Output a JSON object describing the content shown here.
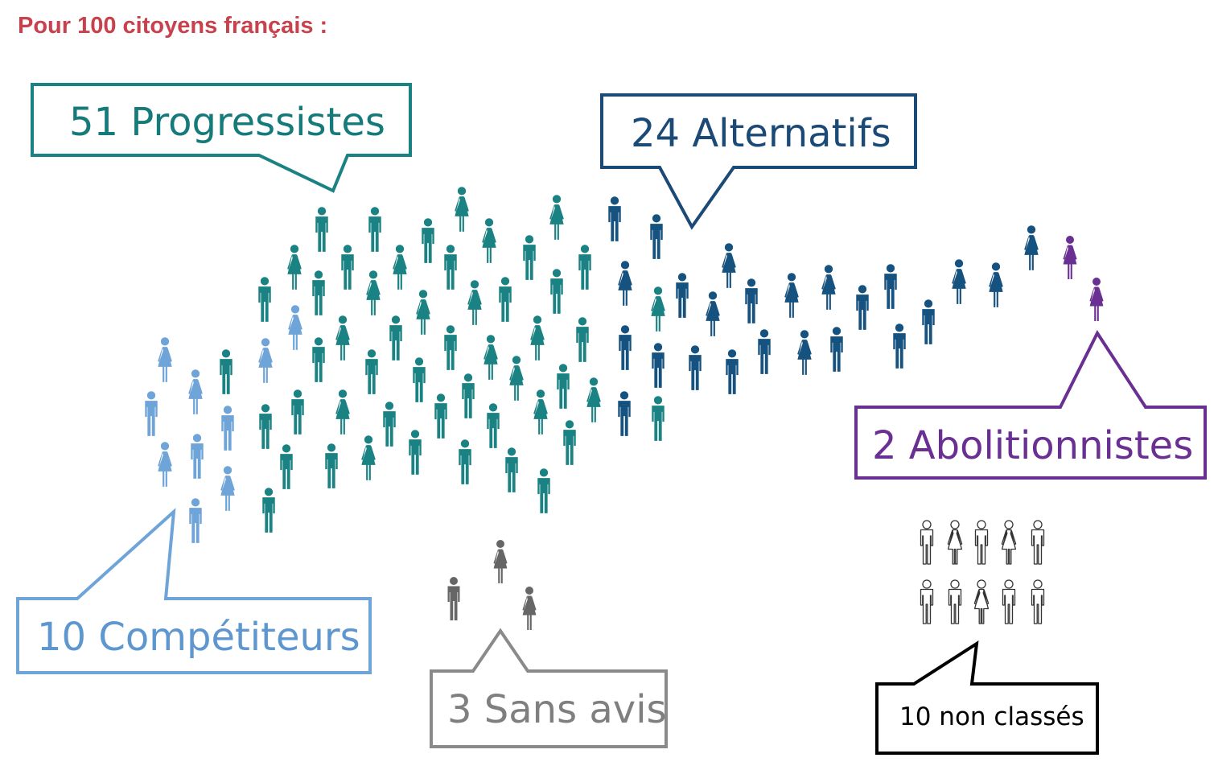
{
  "header": "Pour 100 citoyens français :",
  "groups": [
    {
      "key": "progressistes",
      "count": 51,
      "label": "51 Progressistes",
      "color": "#1a8283"
    },
    {
      "key": "alternatifs",
      "count": 24,
      "label": "24 Alternatifs",
      "color": "#16527f"
    },
    {
      "key": "abolitionnistes",
      "count": 2,
      "label": "2 Abolitionnistes",
      "color": "#6a2f93"
    },
    {
      "key": "competiteurs",
      "count": 10,
      "label": "10 Compétiteurs",
      "color": "#6ea4d8"
    },
    {
      "key": "sansavis",
      "count": 3,
      "label": "3 Sans avis",
      "color": "#666666"
    },
    {
      "key": "nonclasses",
      "count": 10,
      "label": "10 non classés",
      "color": "#000000"
    }
  ]
}
